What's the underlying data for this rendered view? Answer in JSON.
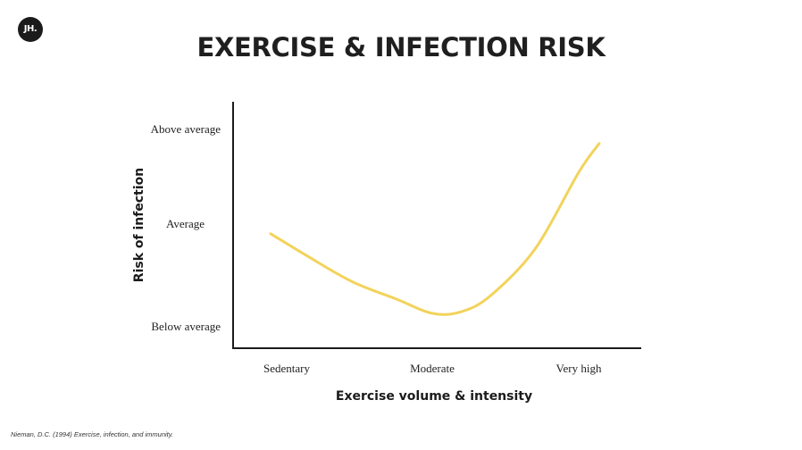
{
  "logo": {
    "text": "JH."
  },
  "title": "EXERCISE & INFECTION RISK",
  "source": "Nieman, D.C. (1994) Exercise, infection, and immunity.",
  "colors": {
    "curve": "#F2D35B",
    "axis": "#1b1b1b"
  },
  "chart_data": {
    "type": "line",
    "title": "EXERCISE & INFECTION RISK",
    "xlabel": "Exercise volume & intensity",
    "ylabel": "Risk of infection",
    "categories": [
      "Sedentary",
      "Moderate",
      "Very high"
    ],
    "y_tick_labels": [
      "Below average",
      "Average",
      "Above average"
    ],
    "y_tick_values": [
      0,
      1,
      2
    ],
    "ylim": [
      -0.2,
      2.3
    ],
    "xlim": [
      -0.2,
      2.3
    ],
    "series": [
      {
        "name": "Infection risk",
        "x": [
          -0.11,
          0.15,
          0.45,
          0.75,
          1.0,
          1.2,
          1.4,
          1.7,
          2.0,
          2.14
        ],
        "y": [
          0.96,
          0.72,
          0.46,
          0.28,
          0.13,
          0.15,
          0.32,
          0.8,
          1.6,
          1.9
        ]
      }
    ],
    "legend": "none",
    "grid": false
  }
}
